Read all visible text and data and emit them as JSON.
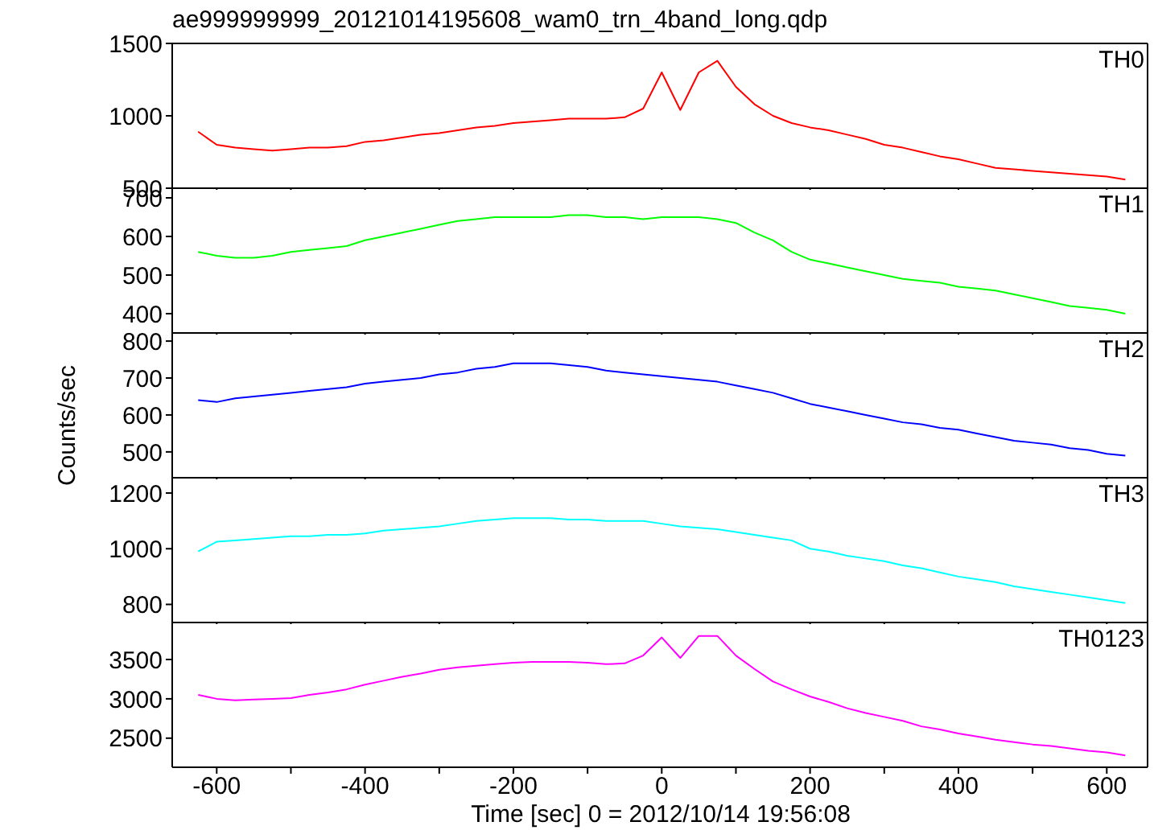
{
  "chart_data": [
    {
      "type": "line",
      "title": "ae999999999_20121014195608_wam0_trn_4band_long.qdp",
      "annotations": [
        "TH0"
      ],
      "tick_labels": "y",
      "marker": "none",
      "legend": false,
      "grid": false,
      "x": [
        -625,
        -600,
        -575,
        -550,
        -525,
        -500,
        -475,
        -450,
        -425,
        -400,
        -375,
        -350,
        -325,
        -300,
        -275,
        -250,
        -225,
        -200,
        -175,
        -150,
        -125,
        -100,
        -75,
        -50,
        -25,
        0,
        25,
        50,
        75,
        100,
        125,
        150,
        175,
        200,
        225,
        250,
        275,
        300,
        325,
        350,
        375,
        400,
        425,
        450,
        475,
        500,
        525,
        550,
        575,
        600,
        625
      ],
      "xlim": [
        -660,
        655
      ],
      "xticks": [
        -600,
        {
          "value": -500,
          "label": null
        },
        -400,
        {
          "value": -300,
          "label": null
        },
        -200,
        {
          "value": -100,
          "label": null
        },
        0,
        {
          "value": 100,
          "label": null
        },
        200,
        {
          "value": 300,
          "label": null
        },
        400,
        {
          "value": 500,
          "label": null
        },
        600
      ],
      "ylim": [
        500,
        1500
      ],
      "yticks": [
        500,
        1000,
        1500
      ],
      "series": [
        {
          "color": "#ff0000",
          "values": [
            890,
            800,
            780,
            770,
            760,
            770,
            780,
            780,
            790,
            820,
            830,
            850,
            870,
            880,
            900,
            920,
            930,
            950,
            960,
            970,
            980,
            980,
            980,
            990,
            1050,
            1300,
            1040,
            1300,
            1380,
            1200,
            1080,
            1000,
            950,
            920,
            900,
            870,
            840,
            800,
            780,
            750,
            720,
            700,
            670,
            640,
            630,
            620,
            610,
            600,
            590,
            580,
            560
          ]
        }
      ]
    },
    {
      "type": "line",
      "annotations": [
        "TH1"
      ],
      "tick_labels": "y",
      "marker": "none",
      "legend": false,
      "grid": false,
      "x": [
        -625,
        -600,
        -575,
        -550,
        -525,
        -500,
        -475,
        -450,
        -425,
        -400,
        -375,
        -350,
        -325,
        -300,
        -275,
        -250,
        -225,
        -200,
        -175,
        -150,
        -125,
        -100,
        -75,
        -50,
        -25,
        0,
        25,
        50,
        75,
        100,
        125,
        150,
        175,
        200,
        225,
        250,
        275,
        300,
        325,
        350,
        375,
        400,
        425,
        450,
        475,
        500,
        525,
        550,
        575,
        600,
        625
      ],
      "xlim": [
        -660,
        655
      ],
      "xticks": [
        -600,
        {
          "value": -500,
          "label": null
        },
        -400,
        {
          "value": -300,
          "label": null
        },
        -200,
        {
          "value": -100,
          "label": null
        },
        0,
        {
          "value": 100,
          "label": null
        },
        200,
        {
          "value": 300,
          "label": null
        },
        400,
        {
          "value": 500,
          "label": null
        },
        600
      ],
      "ylim": [
        350,
        725
      ],
      "yticks": [
        400,
        500,
        600,
        700
      ],
      "series": [
        {
          "color": "#00ff00",
          "values": [
            560,
            550,
            545,
            545,
            550,
            560,
            565,
            570,
            575,
            590,
            600,
            610,
            620,
            630,
            640,
            645,
            650,
            650,
            650,
            650,
            655,
            655,
            650,
            650,
            645,
            650,
            650,
            650,
            645,
            635,
            610,
            590,
            560,
            540,
            530,
            520,
            510,
            500,
            490,
            485,
            480,
            470,
            465,
            460,
            450,
            440,
            430,
            420,
            415,
            410,
            400
          ]
        }
      ]
    },
    {
      "type": "line",
      "ylabel": "Counts/sec",
      "annotations": [
        "TH2"
      ],
      "tick_labels": "y",
      "marker": "none",
      "legend": false,
      "grid": false,
      "x": [
        -625,
        -600,
        -575,
        -550,
        -525,
        -500,
        -475,
        -450,
        -425,
        -400,
        -375,
        -350,
        -325,
        -300,
        -275,
        -250,
        -225,
        -200,
        -175,
        -150,
        -125,
        -100,
        -75,
        -50,
        -25,
        0,
        25,
        50,
        75,
        100,
        125,
        150,
        175,
        200,
        225,
        250,
        275,
        300,
        325,
        350,
        375,
        400,
        425,
        450,
        475,
        500,
        525,
        550,
        575,
        600,
        625
      ],
      "xlim": [
        -660,
        655
      ],
      "xticks": [
        -600,
        {
          "value": -500,
          "label": null
        },
        -400,
        {
          "value": -300,
          "label": null
        },
        -200,
        {
          "value": -100,
          "label": null
        },
        0,
        {
          "value": 100,
          "label": null
        },
        200,
        {
          "value": 300,
          "label": null
        },
        400,
        {
          "value": 500,
          "label": null
        },
        600
      ],
      "ylim": [
        430,
        822
      ],
      "yticks": [
        500,
        600,
        700,
        800
      ],
      "series": [
        {
          "color": "#0000ff",
          "values": [
            640,
            635,
            645,
            650,
            655,
            660,
            665,
            670,
            675,
            685,
            690,
            695,
            700,
            710,
            715,
            725,
            730,
            740,
            740,
            740,
            735,
            730,
            720,
            715,
            710,
            705,
            700,
            695,
            690,
            680,
            670,
            660,
            645,
            630,
            620,
            610,
            600,
            590,
            580,
            575,
            565,
            560,
            550,
            540,
            530,
            525,
            520,
            510,
            505,
            495,
            490
          ]
        }
      ]
    },
    {
      "type": "line",
      "annotations": [
        "TH3"
      ],
      "tick_labels": "y",
      "marker": "none",
      "legend": false,
      "grid": false,
      "x": [
        -625,
        -600,
        -575,
        -550,
        -525,
        -500,
        -475,
        -450,
        -425,
        -400,
        -375,
        -350,
        -325,
        -300,
        -275,
        -250,
        -225,
        -200,
        -175,
        -150,
        -125,
        -100,
        -75,
        -50,
        -25,
        0,
        25,
        50,
        75,
        100,
        125,
        150,
        175,
        200,
        225,
        250,
        275,
        300,
        325,
        350,
        375,
        400,
        425,
        450,
        475,
        500,
        525,
        550,
        575,
        600,
        625
      ],
      "xlim": [
        -660,
        655
      ],
      "xticks": [
        -600,
        {
          "value": -500,
          "label": null
        },
        -400,
        {
          "value": -300,
          "label": null
        },
        -200,
        {
          "value": -100,
          "label": null
        },
        0,
        {
          "value": 100,
          "label": null
        },
        200,
        {
          "value": 300,
          "label": null
        },
        400,
        {
          "value": 500,
          "label": null
        },
        600
      ],
      "ylim": [
        735,
        1255
      ],
      "yticks": [
        800,
        1000,
        1200
      ],
      "series": [
        {
          "color": "#00ffff",
          "values": [
            990,
            1025,
            1030,
            1035,
            1040,
            1045,
            1045,
            1050,
            1050,
            1055,
            1065,
            1070,
            1075,
            1080,
            1090,
            1100,
            1105,
            1110,
            1110,
            1110,
            1105,
            1105,
            1100,
            1100,
            1100,
            1090,
            1080,
            1075,
            1070,
            1060,
            1050,
            1040,
            1030,
            1000,
            990,
            975,
            965,
            955,
            940,
            930,
            915,
            900,
            890,
            880,
            865,
            855,
            845,
            835,
            825,
            815,
            805
          ]
        }
      ]
    },
    {
      "type": "line",
      "xlabel": "Time [sec] 0 = 2012/10/14 19:56:08",
      "annotations": [
        "TH0123"
      ],
      "marker": "none",
      "legend": false,
      "grid": false,
      "x": [
        -625,
        -600,
        -575,
        -550,
        -525,
        -500,
        -475,
        -450,
        -425,
        -400,
        -375,
        -350,
        -325,
        -300,
        -275,
        -250,
        -225,
        -200,
        -175,
        -150,
        -125,
        -100,
        -75,
        -50,
        -25,
        0,
        25,
        50,
        75,
        100,
        125,
        150,
        175,
        200,
        225,
        250,
        275,
        300,
        325,
        350,
        375,
        400,
        425,
        450,
        475,
        500,
        525,
        550,
        575,
        600,
        625
      ],
      "xlim": [
        -660,
        655
      ],
      "xticks": [
        -600,
        {
          "value": -500,
          "label": null
        },
        -400,
        {
          "value": -300,
          "label": null
        },
        -200,
        {
          "value": -100,
          "label": null
        },
        0,
        {
          "value": 100,
          "label": null
        },
        200,
        {
          "value": 300,
          "label": null
        },
        400,
        {
          "value": 500,
          "label": null
        },
        600
      ],
      "ylim": [
        2130,
        3970
      ],
      "yticks": [
        2500,
        3000,
        3500
      ],
      "series": [
        {
          "color": "#ff00ff",
          "values": [
            3050,
            3000,
            2980,
            2990,
            3000,
            3010,
            3050,
            3080,
            3120,
            3180,
            3230,
            3280,
            3320,
            3370,
            3400,
            3420,
            3440,
            3460,
            3470,
            3470,
            3470,
            3460,
            3440,
            3450,
            3550,
            3780,
            3520,
            3800,
            3800,
            3550,
            3380,
            3220,
            3120,
            3030,
            2960,
            2880,
            2820,
            2770,
            2720,
            2650,
            2610,
            2560,
            2520,
            2480,
            2450,
            2420,
            2400,
            2370,
            2340,
            2320,
            2280
          ]
        }
      ]
    }
  ]
}
